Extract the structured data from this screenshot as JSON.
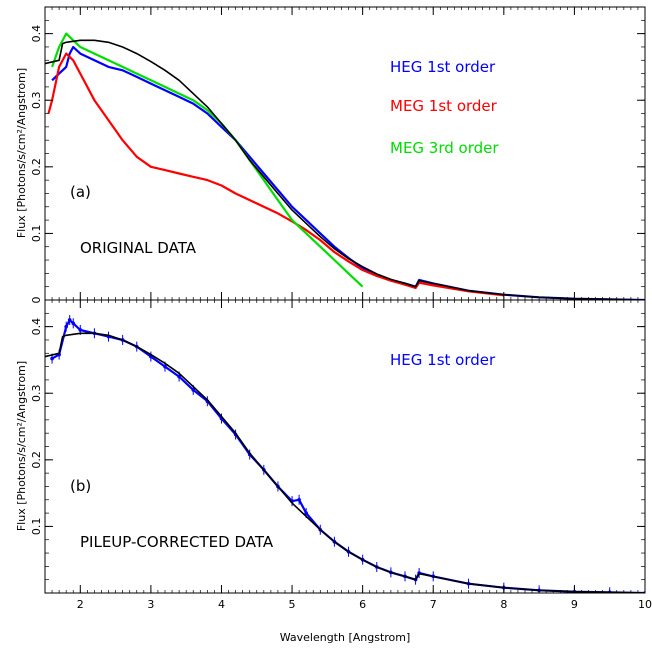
{
  "chart_data": [
    {
      "type": "line",
      "panel_label": "(a)",
      "annotation": "ORIGINAL DATA",
      "xlabel": "",
      "ylabel": "Flux [Photons/s/cm²/Angstrom]",
      "xlim": [
        1.5,
        10
      ],
      "ylim": [
        0,
        0.44
      ],
      "x_ticks": [
        2,
        3,
        4,
        5,
        6,
        7,
        8,
        9,
        10
      ],
      "y_ticks": [
        0,
        0.1,
        0.2,
        0.3,
        0.4
      ],
      "y_tick_labels": [
        "0",
        "0.1",
        "0.2",
        "0.3",
        "0.4"
      ],
      "series": [
        {
          "name": "HEG 1st order",
          "color": "#0000ff",
          "x": [
            1.6,
            1.7,
            1.8,
            1.85,
            1.9,
            2.0,
            2.2,
            2.4,
            2.6,
            2.8,
            3.0,
            3.2,
            3.4,
            3.6,
            3.8,
            4.0,
            4.2,
            4.4,
            4.6,
            4.8,
            5.0,
            5.2,
            5.4,
            5.6,
            5.8,
            6.0,
            6.2,
            6.4,
            6.6,
            6.75,
            6.8,
            7.0,
            7.5,
            8.0,
            8.5,
            9.0,
            9.5,
            10.0
          ],
          "y": [
            0.33,
            0.34,
            0.35,
            0.37,
            0.38,
            0.37,
            0.36,
            0.35,
            0.345,
            0.335,
            0.325,
            0.315,
            0.305,
            0.295,
            0.28,
            0.26,
            0.24,
            0.215,
            0.19,
            0.165,
            0.14,
            0.12,
            0.1,
            0.08,
            0.063,
            0.048,
            0.038,
            0.03,
            0.025,
            0.02,
            0.03,
            0.025,
            0.014,
            0.008,
            0.004,
            0.002,
            0.001,
            0.0
          ]
        },
        {
          "name": "MEG 1st order",
          "color": "#ff0000",
          "x": [
            1.55,
            1.6,
            1.7,
            1.8,
            1.9,
            2.0,
            2.2,
            2.4,
            2.6,
            2.8,
            3.0,
            3.2,
            3.4,
            3.6,
            3.8,
            4.0,
            4.2,
            4.4,
            4.6,
            4.8,
            5.0,
            5.2,
            5.4,
            5.6,
            5.8,
            6.0,
            6.2,
            6.4,
            6.6,
            6.75,
            6.8,
            7.0,
            7.5,
            8.0
          ],
          "y": [
            0.28,
            0.3,
            0.35,
            0.37,
            0.36,
            0.34,
            0.3,
            0.27,
            0.24,
            0.215,
            0.2,
            0.195,
            0.19,
            0.185,
            0.18,
            0.172,
            0.16,
            0.15,
            0.14,
            0.13,
            0.118,
            0.105,
            0.09,
            0.072,
            0.058,
            0.045,
            0.036,
            0.029,
            0.023,
            0.018,
            0.026,
            0.022,
            0.013,
            0.007
          ]
        },
        {
          "name": "MEG 3rd order",
          "color": "#00dd00",
          "x": [
            1.6,
            1.7,
            1.8,
            1.9,
            2.0,
            2.2,
            2.4,
            2.6,
            2.8,
            3.0,
            3.2,
            3.4,
            3.6,
            3.8,
            4.0,
            4.2,
            4.4,
            4.6,
            4.8,
            5.0,
            5.2,
            5.4,
            5.6,
            5.8,
            6.0
          ],
          "y": [
            0.35,
            0.38,
            0.4,
            0.39,
            0.38,
            0.37,
            0.36,
            0.35,
            0.34,
            0.33,
            0.32,
            0.31,
            0.3,
            0.285,
            0.265,
            0.24,
            0.21,
            0.18,
            0.15,
            0.12,
            0.1,
            0.08,
            0.06,
            0.04,
            0.02
          ]
        },
        {
          "name": "",
          "color": "#000000",
          "x": [
            1.5,
            1.7,
            1.75,
            1.8,
            2.0,
            2.2,
            2.4,
            2.6,
            2.8,
            3.0,
            3.2,
            3.4,
            3.6,
            3.8,
            4.0,
            4.2,
            4.4,
            4.6,
            4.8,
            5.0,
            5.2,
            5.4,
            5.6,
            5.8,
            6.0,
            6.2,
            6.4,
            6.6,
            6.75,
            6.8,
            7.0,
            7.5,
            8.0,
            8.5,
            9.0,
            9.5,
            10.0
          ],
          "y": [
            0.355,
            0.36,
            0.385,
            0.387,
            0.39,
            0.39,
            0.387,
            0.38,
            0.37,
            0.358,
            0.345,
            0.33,
            0.31,
            0.29,
            0.265,
            0.24,
            0.21,
            0.185,
            0.16,
            0.135,
            0.115,
            0.095,
            0.077,
            0.062,
            0.05,
            0.039,
            0.031,
            0.025,
            0.02,
            0.029,
            0.025,
            0.014,
            0.008,
            0.004,
            0.002,
            0.001,
            0.0
          ]
        }
      ]
    },
    {
      "type": "line",
      "panel_label": "(b)",
      "annotation": "PILEUP-CORRECTED DATA",
      "xlabel": "Wavelength [Angstrom]",
      "ylabel": "Flux [Photons/s/cm²/Angstrom]",
      "xlim": [
        1.5,
        10
      ],
      "ylim": [
        0,
        0.44
      ],
      "x_ticks": [
        2,
        3,
        4,
        5,
        6,
        7,
        8,
        9,
        10
      ],
      "x_tick_labels": [
        "2",
        "3",
        "4",
        "5",
        "6",
        "7",
        "8",
        "9",
        "10"
      ],
      "y_ticks": [
        0.1,
        0.2,
        0.3,
        0.4
      ],
      "y_tick_labels": [
        "0.1",
        "0.2",
        "0.3",
        "0.4"
      ],
      "series": [
        {
          "name": "HEG 1st order",
          "color": "#0000ff",
          "errorbars": true,
          "x": [
            1.6,
            1.7,
            1.8,
            1.85,
            1.9,
            2.0,
            2.2,
            2.4,
            2.6,
            2.8,
            3.0,
            3.2,
            3.4,
            3.6,
            3.8,
            4.0,
            4.2,
            4.4,
            4.6,
            4.8,
            5.0,
            5.1,
            5.2,
            5.4,
            5.6,
            5.8,
            6.0,
            6.2,
            6.4,
            6.6,
            6.75,
            6.8,
            7.0,
            7.5,
            8.0,
            8.5,
            9.0,
            9.5,
            10.0
          ],
          "y": [
            0.352,
            0.358,
            0.4,
            0.41,
            0.405,
            0.395,
            0.39,
            0.385,
            0.38,
            0.37,
            0.355,
            0.34,
            0.325,
            0.305,
            0.288,
            0.262,
            0.238,
            0.208,
            0.185,
            0.16,
            0.138,
            0.14,
            0.12,
            0.095,
            0.077,
            0.062,
            0.05,
            0.039,
            0.031,
            0.025,
            0.02,
            0.03,
            0.025,
            0.014,
            0.008,
            0.004,
            0.002,
            0.001,
            0.0
          ]
        },
        {
          "name": "",
          "color": "#000000",
          "x": [
            1.5,
            1.7,
            1.75,
            1.8,
            2.0,
            2.2,
            2.4,
            2.6,
            2.8,
            3.0,
            3.2,
            3.4,
            3.6,
            3.8,
            4.0,
            4.2,
            4.4,
            4.6,
            4.8,
            5.0,
            5.2,
            5.4,
            5.6,
            5.8,
            6.0,
            6.2,
            6.4,
            6.6,
            6.75,
            6.8,
            7.0,
            7.5,
            8.0,
            8.5,
            9.0,
            9.5,
            10.0
          ],
          "y": [
            0.355,
            0.36,
            0.385,
            0.387,
            0.39,
            0.39,
            0.387,
            0.38,
            0.37,
            0.358,
            0.345,
            0.33,
            0.31,
            0.29,
            0.265,
            0.24,
            0.21,
            0.185,
            0.16,
            0.135,
            0.115,
            0.095,
            0.077,
            0.062,
            0.05,
            0.039,
            0.031,
            0.025,
            0.02,
            0.029,
            0.025,
            0.014,
            0.008,
            0.004,
            0.002,
            0.001,
            0.0
          ]
        }
      ]
    }
  ]
}
